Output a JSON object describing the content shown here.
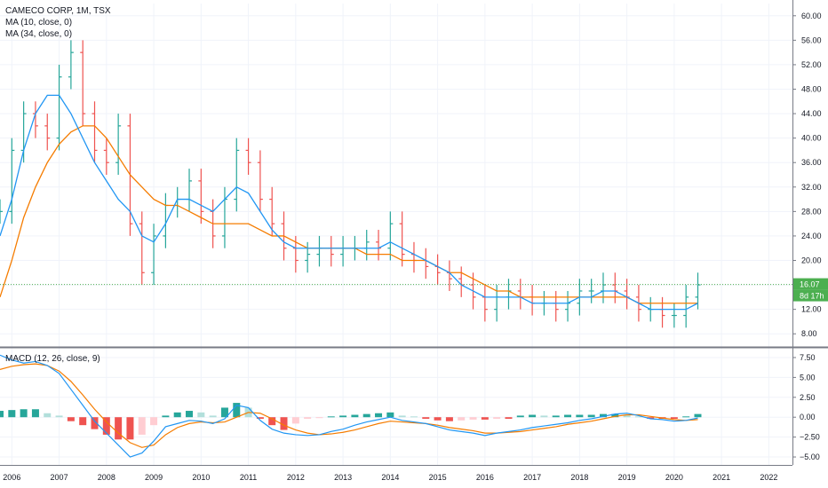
{
  "legend": {
    "title": "CAMECO CORP, 1M, TSX",
    "ma10": "MA (10, close, 0)",
    "ma34": "MA (34, close, 0)",
    "macd": "MACD (12, 26, close, 9)"
  },
  "colors": {
    "up": "#26a69a",
    "up_light": "#b2dfdb",
    "down": "#ef5350",
    "down_light": "#ffcdd2",
    "ma10": "#2196f3",
    "ma34": "#f57c00",
    "last_price_line": "#4caf50",
    "grid": "#f0f3fa",
    "axis_line": "#787b86",
    "divider": "#787b86"
  },
  "price_tags": {
    "last_price": "16.07",
    "countdown": "8d 17h"
  },
  "chart_data": [
    {
      "type": "line",
      "title": "CAMECO CORP, 1M, TSX",
      "ylim": [
        6.0,
        62.0
      ],
      "y_ticks": [
        8.0,
        12.0,
        16.0,
        20.0,
        24.0,
        28.0,
        32.0,
        36.0,
        40.0,
        44.0,
        48.0,
        52.0,
        56.0,
        60.0
      ],
      "x_ticks": [
        "2006",
        "2007",
        "2008",
        "2009",
        "2010",
        "2011",
        "2012",
        "2013",
        "2014",
        "2015",
        "2016",
        "2017",
        "2018",
        "2019",
        "2020",
        "2021",
        "2022"
      ],
      "xlim": [
        2005.75,
        2022.5
      ],
      "last_price": 16.07,
      "bars": {
        "x": [
          2005.75,
          2006.0,
          2006.25,
          2006.5,
          2006.75,
          2007.0,
          2007.25,
          2007.5,
          2007.75,
          2008.0,
          2008.25,
          2008.5,
          2008.75,
          2009.0,
          2009.25,
          2009.5,
          2009.75,
          2010.0,
          2010.25,
          2010.5,
          2010.75,
          2011.0,
          2011.25,
          2011.5,
          2011.75,
          2012.0,
          2012.25,
          2012.5,
          2012.75,
          2013.0,
          2013.25,
          2013.5,
          2013.75,
          2014.0,
          2014.25,
          2014.5,
          2014.75,
          2015.0,
          2015.25,
          2015.5,
          2015.75,
          2016.0,
          2016.25,
          2016.5,
          2016.75,
          2017.0,
          2017.25,
          2017.5,
          2017.75,
          2018.0,
          2018.25,
          2018.5,
          2018.75,
          2019.0,
          2019.25,
          2019.5,
          2019.75,
          2020.0,
          2020.25,
          2020.5
        ],
        "close": [
          28,
          38,
          44,
          42,
          40,
          50,
          54,
          44,
          38,
          36,
          42,
          26,
          18,
          24,
          29,
          30,
          33,
          28,
          24,
          30,
          38,
          36,
          30,
          26,
          22,
          20,
          21,
          22,
          21,
          22,
          22,
          23,
          22,
          26,
          21,
          20,
          19,
          18,
          17,
          16,
          14,
          12,
          14,
          15,
          14,
          13,
          13,
          12,
          13,
          15,
          15,
          16,
          15,
          14,
          12,
          12,
          11,
          11,
          14,
          16
        ]
      },
      "ma10": [
        24,
        30,
        38,
        44,
        47,
        47,
        44,
        40,
        36,
        33,
        30,
        28,
        24,
        23,
        26,
        30,
        30,
        29,
        28,
        30,
        32,
        31,
        28,
        25,
        23,
        22,
        22,
        22,
        22,
        22,
        22,
        22,
        22,
        23,
        22,
        21,
        20,
        19,
        18,
        16,
        15,
        14,
        14,
        14,
        14,
        13,
        13,
        13,
        13,
        14,
        14,
        15,
        15,
        14,
        13,
        12,
        12,
        12,
        12,
        13
      ],
      "ma34": [
        14,
        20,
        27,
        32,
        36,
        39,
        41,
        42,
        42,
        40,
        37,
        34,
        32,
        30,
        29,
        29,
        28,
        27,
        26,
        26,
        26,
        26,
        25,
        24,
        24,
        23,
        22,
        22,
        22,
        22,
        22,
        21,
        21,
        21,
        20,
        20,
        20,
        19,
        18,
        18,
        17,
        16,
        15,
        15,
        14,
        14,
        14,
        14,
        14,
        14,
        14,
        14,
        14,
        14,
        13,
        13,
        13,
        13,
        13,
        13
      ]
    },
    {
      "type": "bar",
      "title": "MACD (12, 26, close, 9)",
      "ylim": [
        -6.0,
        8.5
      ],
      "y_ticks": [
        7.5,
        5.0,
        2.5,
        0.0,
        -2.5,
        -5.0
      ],
      "x": [
        2005.75,
        2006.0,
        2006.25,
        2006.5,
        2006.75,
        2007.0,
        2007.25,
        2007.5,
        2007.75,
        2008.0,
        2008.25,
        2008.5,
        2008.75,
        2009.0,
        2009.25,
        2009.5,
        2009.75,
        2010.0,
        2010.25,
        2010.5,
        2010.75,
        2011.0,
        2011.25,
        2011.5,
        2011.75,
        2012.0,
        2012.25,
        2012.5,
        2012.75,
        2013.0,
        2013.25,
        2013.5,
        2013.75,
        2014.0,
        2014.25,
        2014.5,
        2014.75,
        2015.0,
        2015.25,
        2015.5,
        2015.75,
        2016.0,
        2016.25,
        2016.5,
        2016.75,
        2017.0,
        2017.25,
        2017.5,
        2017.75,
        2018.0,
        2018.25,
        2018.5,
        2018.75,
        2019.0,
        2019.25,
        2019.5,
        2019.75,
        2020.0,
        2020.25,
        2020.5
      ],
      "histogram": [
        0.8,
        0.9,
        1.0,
        1.0,
        0.5,
        0.2,
        -0.5,
        -1.0,
        -1.5,
        -2.2,
        -2.8,
        -2.8,
        -2.2,
        -1.0,
        0.2,
        0.6,
        0.8,
        0.6,
        0.2,
        1.2,
        1.8,
        1.2,
        -0.2,
        -1.0,
        -1.6,
        -0.8,
        -0.2,
        -0.1,
        0.1,
        0.2,
        0.3,
        0.4,
        0.5,
        0.6,
        0.2,
        0.1,
        -0.2,
        -0.4,
        -0.5,
        -0.4,
        -0.3,
        -0.3,
        -0.2,
        -0.2,
        0.2,
        0.3,
        0.2,
        0.2,
        0.3,
        0.3,
        0.3,
        0.4,
        0.4,
        0.3,
        0.1,
        -0.2,
        -0.2,
        -0.2,
        0.1,
        0.4
      ],
      "macd": [
        7.8,
        7.2,
        6.8,
        7.0,
        6.5,
        5.5,
        3.5,
        1.5,
        -0.5,
        -2.0,
        -3.5,
        -5.0,
        -4.5,
        -3.0,
        -1.2,
        -0.8,
        -0.4,
        -0.5,
        -0.8,
        -0.2,
        1.5,
        1.2,
        -0.4,
        -1.5,
        -2.0,
        -2.2,
        -2.3,
        -2.2,
        -1.8,
        -1.5,
        -1.0,
        -0.6,
        -0.3,
        0.0,
        -0.4,
        -0.6,
        -0.8,
        -1.2,
        -1.6,
        -1.8,
        -2.0,
        -2.3,
        -2.0,
        -1.8,
        -1.6,
        -1.3,
        -1.1,
        -0.9,
        -0.7,
        -0.4,
        -0.2,
        0.1,
        0.4,
        0.5,
        0.2,
        -0.2,
        -0.3,
        -0.5,
        -0.4,
        -0.1
      ],
      "signal": [
        6.0,
        6.4,
        6.6,
        6.7,
        6.5,
        5.8,
        4.5,
        2.8,
        1.0,
        -0.6,
        -2.0,
        -3.2,
        -3.8,
        -3.5,
        -2.2,
        -1.3,
        -0.8,
        -0.6,
        -0.7,
        -0.6,
        0.0,
        0.6,
        0.5,
        -0.2,
        -1.0,
        -1.6,
        -2.0,
        -2.2,
        -2.1,
        -1.9,
        -1.6,
        -1.2,
        -0.8,
        -0.5,
        -0.6,
        -0.7,
        -0.8,
        -1.0,
        -1.3,
        -1.5,
        -1.7,
        -2.0,
        -2.0,
        -1.9,
        -1.8,
        -1.6,
        -1.4,
        -1.2,
        -0.9,
        -0.7,
        -0.5,
        -0.2,
        0.1,
        0.3,
        0.3,
        0.1,
        -0.1,
        -0.3,
        -0.4,
        -0.3
      ]
    }
  ]
}
